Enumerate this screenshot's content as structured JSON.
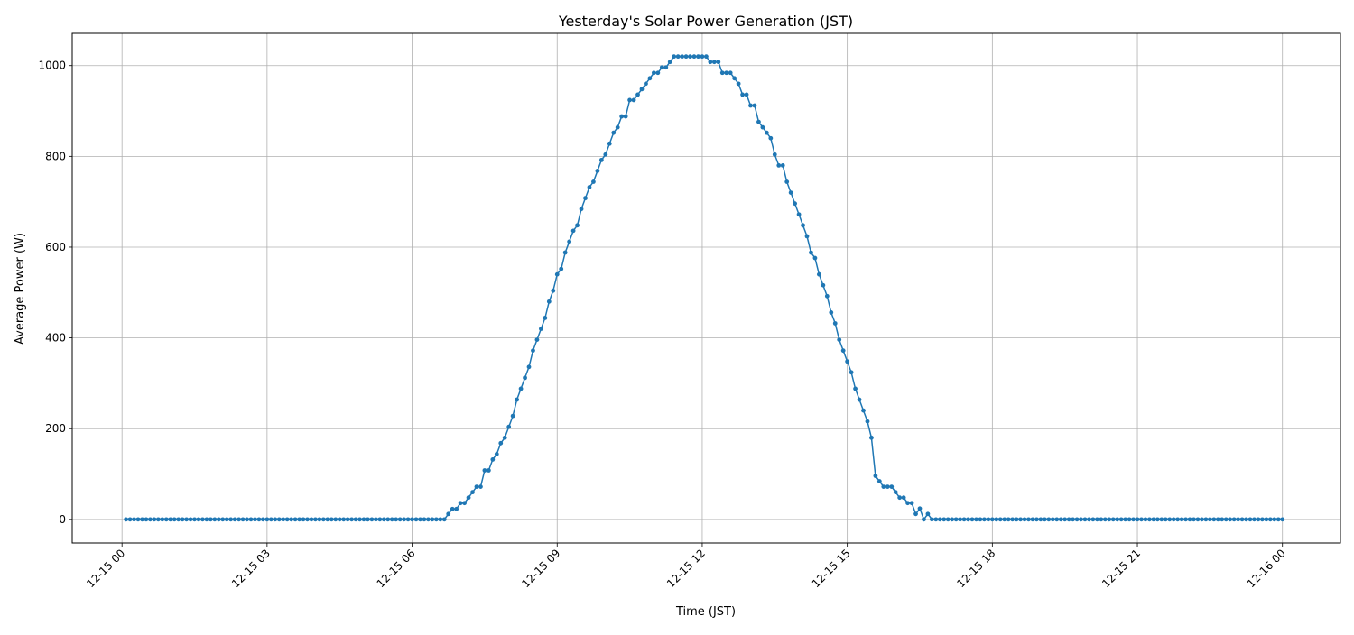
{
  "chart_data": {
    "type": "line",
    "title": "Yesterday's Solar Power Generation (JST)",
    "xlabel": "Time (JST)",
    "ylabel": "Average Power (W)",
    "x_start": "12-15 00:05",
    "interval_minutes": 5,
    "xlim_hours": [
      -1.03,
      25.2
    ],
    "ylim": [
      -52,
      1071
    ],
    "grid": true,
    "marker": "circle",
    "color": "#1f77b4",
    "x_ticks": [
      {
        "hour": 0,
        "label": "12-15 00"
      },
      {
        "hour": 3,
        "label": "12-15 03"
      },
      {
        "hour": 6,
        "label": "12-15 06"
      },
      {
        "hour": 9,
        "label": "12-15 09"
      },
      {
        "hour": 12,
        "label": "12-15 12"
      },
      {
        "hour": 15,
        "label": "12-15 15"
      },
      {
        "hour": 18,
        "label": "12-15 18"
      },
      {
        "hour": 21,
        "label": "12-15 21"
      },
      {
        "hour": 24,
        "label": "12-16 00"
      }
    ],
    "y_ticks": [
      {
        "value": 0,
        "label": "0"
      },
      {
        "value": 200,
        "label": "200"
      },
      {
        "value": 400,
        "label": "400"
      },
      {
        "value": 600,
        "label": "600"
      },
      {
        "value": 800,
        "label": "800"
      },
      {
        "value": 1000,
        "label": "1000"
      }
    ],
    "values": [
      0,
      0,
      0,
      0,
      0,
      0,
      0,
      0,
      0,
      0,
      0,
      0,
      0,
      0,
      0,
      0,
      0,
      0,
      0,
      0,
      0,
      0,
      0,
      0,
      0,
      0,
      0,
      0,
      0,
      0,
      0,
      0,
      0,
      0,
      0,
      0,
      0,
      0,
      0,
      0,
      0,
      0,
      0,
      0,
      0,
      0,
      0,
      0,
      0,
      0,
      0,
      0,
      0,
      0,
      0,
      0,
      0,
      0,
      0,
      0,
      0,
      0,
      0,
      0,
      0,
      0,
      0,
      0,
      0,
      0,
      0,
      0,
      0,
      0,
      0,
      0,
      0,
      0,
      0,
      0,
      12,
      23,
      23,
      36,
      36,
      48,
      60,
      72,
      72,
      108,
      108,
      132,
      144,
      168,
      180,
      204,
      228,
      264,
      288,
      312,
      336,
      372,
      396,
      420,
      444,
      480,
      504,
      540,
      552,
      588,
      612,
      636,
      648,
      684,
      708,
      732,
      744,
      768,
      792,
      804,
      828,
      852,
      864,
      888,
      888,
      924,
      924,
      936,
      948,
      960,
      972,
      984,
      984,
      996,
      996,
      1008,
      1020,
      1020,
      1020,
      1020,
      1020,
      1020,
      1020,
      1020,
      1020,
      1008,
      1008,
      1008,
      984,
      984,
      984,
      972,
      960,
      936,
      936,
      912,
      912,
      876,
      864,
      852,
      840,
      804,
      780,
      780,
      744,
      720,
      696,
      672,
      648,
      624,
      588,
      576,
      540,
      516,
      492,
      456,
      432,
      396,
      372,
      348,
      324,
      288,
      264,
      240,
      216,
      180,
      96,
      84,
      72,
      72,
      72,
      60,
      48,
      48,
      36,
      36,
      12,
      24,
      0,
      12,
      0,
      0,
      0,
      0,
      0,
      0,
      0,
      0,
      0,
      0,
      0,
      0,
      0,
      0,
      0,
      0,
      0,
      0,
      0,
      0,
      0,
      0,
      0,
      0,
      0,
      0,
      0,
      0,
      0,
      0,
      0,
      0,
      0,
      0,
      0,
      0,
      0,
      0,
      0,
      0,
      0,
      0,
      0,
      0,
      0,
      0,
      0,
      0,
      0,
      0,
      0,
      0,
      0,
      0,
      0,
      0,
      0,
      0,
      0,
      0,
      0,
      0,
      0,
      0,
      0,
      0,
      0,
      0,
      0,
      0,
      0,
      0,
      0,
      0,
      0,
      0,
      0,
      0,
      0,
      0,
      0,
      0,
      0,
      0,
      0,
      0,
      0,
      0
    ]
  }
}
